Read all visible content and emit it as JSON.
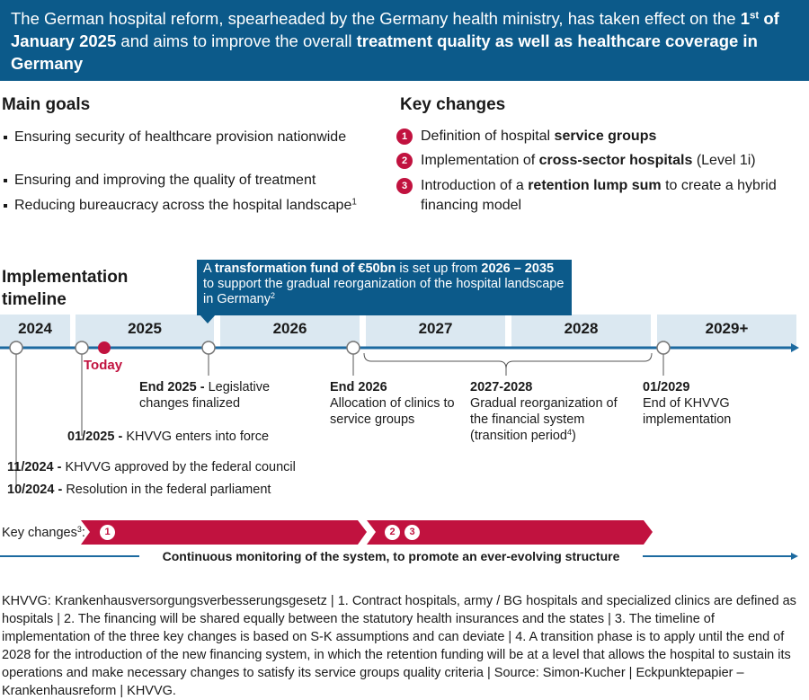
{
  "header": [
    "The German hospital reform, spearheaded by the Germany health ministry, has taken effect on the",
    "1",
    "st",
    "of January 2025",
    "and aims to improve the overall",
    "treatment quality as well as healthcare coverage in Germany"
  ],
  "main_goals": {
    "title": "Main goals",
    "items": [
      {
        "text": "Ensuring security of healthcare provision nationwide"
      },
      {
        "text": "Ensuring and improving the quality of treatment"
      },
      {
        "text": "Reducing bureaucracy across the hospital landscape",
        "footnote": "1"
      }
    ]
  },
  "key_changes": {
    "title": "Key changes",
    "items": [
      {
        "number": "1",
        "runs": [
          "Definition of hospital",
          "service groups"
        ]
      },
      {
        "number": "2",
        "runs": [
          "Implementation of",
          "cross-sector hospitals",
          "(Level 1i)"
        ]
      },
      {
        "number": "3",
        "runs": [
          "Introduction of a",
          "retention lump sum",
          "to create a hybrid financing model"
        ]
      }
    ]
  },
  "timeline": {
    "title": "Implementation timeline",
    "callout": [
      "A",
      "transformation fund of €50bn",
      "is set up from",
      "2026 – 2035",
      "to support the gradual reorganization of the hospital landscape in Germany",
      "2"
    ],
    "years": [
      "2024",
      "2025",
      "2026",
      "2027",
      "2028",
      "2029+"
    ],
    "today": "Today",
    "events": [
      {
        "date": "End 2025 -",
        "text": "Legislative changes finalized"
      },
      {
        "date": "End 2026",
        "text": "Allocation of clinics to service groups"
      },
      {
        "date": "2027-2028",
        "text": "Gradual reorganization of the financial system (transition period",
        "footnote": "4",
        "text_end": ")"
      },
      {
        "date": "01/2029",
        "text": "End of KHVVG implementation"
      },
      {
        "date": "01/2025 -",
        "text": "KHVVG enters into force"
      },
      {
        "date": "11/2024 -",
        "text": "KHVVG approved by the federal council"
      },
      {
        "date": "10/2024 -",
        "text": "Resolution in the federal parliament"
      }
    ],
    "key_changes_label": "Key changes",
    "key_changes_footnote": "3",
    "key_changes_suffix": ":",
    "monitoring": "Continuous monitoring of the system, to promote an ever-evolving structure"
  },
  "footnote": "KHVVG: Krankenhausversorgungsverbesserungsgesetz | 1. Contract hospitals, army / BG hospitals and specialized clinics are defined as hospitals | 2. The financing will be shared equally between the statutory health insurances and the states | 3. The timeline of implementation of the three key changes is based on S-K assumptions and can deviate | 4. A transition phase is to apply until the end of 2028 for the introduction of the new financing system, in which the retention funding will be at a level that allows the hospital to sustain its operations and make necessary changes to satisfy its service groups quality criteria | Source: Simon-Kucher | Eckpunktepapier – Krankenhausreform | KHVVG."
}
